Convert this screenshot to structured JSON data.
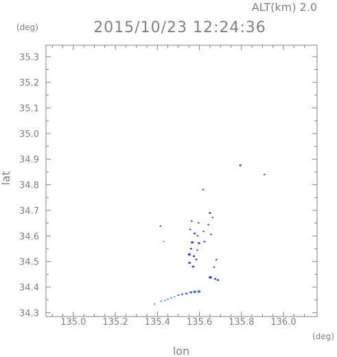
{
  "header": {
    "altitude_label": "ALT(km) 2.0",
    "timestamp": "2015/10/23 12:24:36"
  },
  "chart_data": {
    "type": "scatter",
    "title": "2015/10/23 12:24:36",
    "xlabel": "lon",
    "ylabel": "lat",
    "xunit": "(deg)",
    "yunit": "(deg)",
    "xlim": [
      134.87,
      136.16
    ],
    "ylim": [
      34.285,
      35.345
    ],
    "xticks": [
      135.0,
      135.2,
      135.4,
      135.6,
      135.8,
      136.0
    ],
    "yticks": [
      34.3,
      34.4,
      34.5,
      34.6,
      34.7,
      34.8,
      34.9,
      35.0,
      35.1,
      35.2,
      35.3
    ],
    "xtick_labels": [
      "135.0",
      "135.2",
      "135.4",
      "135.6",
      "135.8",
      "136.0"
    ],
    "ytick_labels": [
      "34.3",
      "34.4",
      "34.5",
      "34.6",
      "34.7",
      "34.8",
      "34.9",
      "35.0",
      "35.1",
      "35.2",
      "35.3"
    ],
    "grid": false,
    "colors": {
      "deep": "#3346e0",
      "mid": "#3a6ee8",
      "light": "#3aa8ee",
      "axis": "#808080"
    },
    "series": [
      {
        "values": [
          {
            "lon": 135.795,
            "lat": 34.876,
            "size": 0.01,
            "tone": "deep"
          },
          {
            "lon": 135.909,
            "lat": 34.84,
            "size": 0.006,
            "tone": "deep"
          },
          {
            "lon": 135.618,
            "lat": 34.781,
            "size": 0.004,
            "tone": "deep"
          },
          {
            "lon": 135.65,
            "lat": 34.69,
            "size": 0.01,
            "tone": "deep"
          },
          {
            "lon": 135.663,
            "lat": 34.672,
            "size": 0.008,
            "tone": "deep"
          },
          {
            "lon": 135.415,
            "lat": 34.638,
            "size": 0.007,
            "tone": "deep"
          },
          {
            "lon": 135.563,
            "lat": 34.658,
            "size": 0.006,
            "tone": "deep"
          },
          {
            "lon": 135.596,
            "lat": 34.651,
            "size": 0.005,
            "tone": "deep"
          },
          {
            "lon": 135.643,
            "lat": 34.644,
            "size": 0.008,
            "tone": "deep"
          },
          {
            "lon": 135.556,
            "lat": 34.625,
            "size": 0.008,
            "tone": "deep"
          },
          {
            "lon": 135.577,
            "lat": 34.61,
            "size": 0.01,
            "tone": "deep"
          },
          {
            "lon": 135.591,
            "lat": 34.601,
            "size": 0.008,
            "tone": "deep"
          },
          {
            "lon": 135.62,
            "lat": 34.618,
            "size": 0.007,
            "tone": "deep"
          },
          {
            "lon": 135.655,
            "lat": 34.606,
            "size": 0.008,
            "tone": "deep"
          },
          {
            "lon": 135.43,
            "lat": 34.578,
            "size": 0.005,
            "tone": "light"
          },
          {
            "lon": 135.566,
            "lat": 34.575,
            "size": 0.012,
            "tone": "deep"
          },
          {
            "lon": 135.598,
            "lat": 34.572,
            "size": 0.011,
            "tone": "deep"
          },
          {
            "lon": 135.624,
            "lat": 34.578,
            "size": 0.009,
            "tone": "deep"
          },
          {
            "lon": 135.56,
            "lat": 34.55,
            "size": 0.01,
            "tone": "deep"
          },
          {
            "lon": 135.59,
            "lat": 34.545,
            "size": 0.008,
            "tone": "deep"
          },
          {
            "lon": 135.552,
            "lat": 34.528,
            "size": 0.013,
            "tone": "deep"
          },
          {
            "lon": 135.574,
            "lat": 34.521,
            "size": 0.01,
            "tone": "deep"
          },
          {
            "lon": 135.585,
            "lat": 34.508,
            "size": 0.009,
            "tone": "deep"
          },
          {
            "lon": 135.553,
            "lat": 34.495,
            "size": 0.011,
            "tone": "deep"
          },
          {
            "lon": 135.57,
            "lat": 34.48,
            "size": 0.011,
            "tone": "deep"
          },
          {
            "lon": 135.681,
            "lat": 34.507,
            "size": 0.006,
            "tone": "deep"
          },
          {
            "lon": 135.67,
            "lat": 34.478,
            "size": 0.008,
            "tone": "deep"
          },
          {
            "lon": 135.652,
            "lat": 34.438,
            "size": 0.014,
            "tone": "deep"
          },
          {
            "lon": 135.675,
            "lat": 34.432,
            "size": 0.01,
            "tone": "deep"
          },
          {
            "lon": 135.688,
            "lat": 34.428,
            "size": 0.01,
            "tone": "deep"
          },
          {
            "lon": 135.598,
            "lat": 34.383,
            "size": 0.014,
            "tone": "mid"
          },
          {
            "lon": 135.578,
            "lat": 34.382,
            "size": 0.013,
            "tone": "mid"
          },
          {
            "lon": 135.56,
            "lat": 34.38,
            "size": 0.012,
            "tone": "mid"
          },
          {
            "lon": 135.538,
            "lat": 34.375,
            "size": 0.011,
            "tone": "mid"
          },
          {
            "lon": 135.518,
            "lat": 34.372,
            "size": 0.01,
            "tone": "mid"
          },
          {
            "lon": 135.5,
            "lat": 34.369,
            "size": 0.009,
            "tone": "mid"
          },
          {
            "lon": 135.482,
            "lat": 34.362,
            "size": 0.008,
            "tone": "light"
          },
          {
            "lon": 135.466,
            "lat": 34.358,
            "size": 0.008,
            "tone": "light"
          },
          {
            "lon": 135.45,
            "lat": 34.353,
            "size": 0.008,
            "tone": "light"
          },
          {
            "lon": 135.436,
            "lat": 34.348,
            "size": 0.008,
            "tone": "light"
          },
          {
            "lon": 135.418,
            "lat": 34.345,
            "size": 0.008,
            "tone": "light"
          },
          {
            "lon": 135.386,
            "lat": 34.334,
            "size": 0.008,
            "tone": "light"
          }
        ]
      }
    ]
  }
}
